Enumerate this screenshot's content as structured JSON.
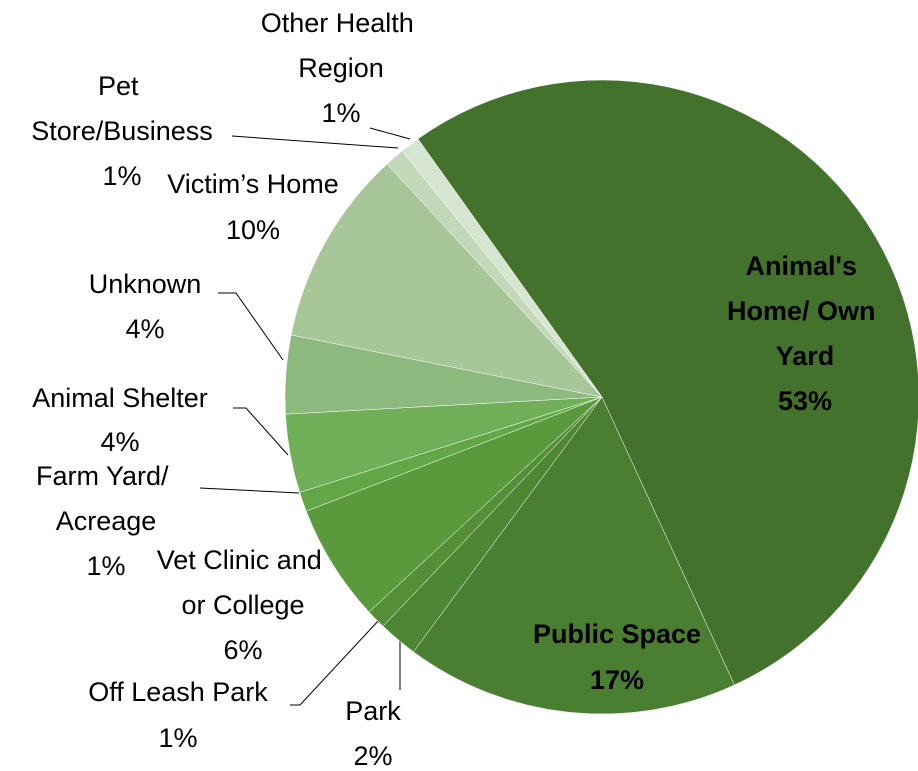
{
  "chart_data": {
    "type": "pie",
    "categories": [
      "Animal's Home/ Own Yard",
      "Public Space",
      "Park",
      "Off Leash Park",
      "Vet Clinic and or College",
      "Farm Yard/ Acreage",
      "Animal Shelter",
      "Unknown",
      "Victim’s Home",
      "Pet Store/Business",
      "Other Health Region"
    ],
    "values": [
      53,
      17,
      2,
      1,
      6,
      1,
      4,
      4,
      10,
      1,
      1
    ],
    "value_labels": [
      "53%",
      "17%",
      "2%",
      "1%",
      "6%",
      "1%",
      "4%",
      "4%",
      "10%",
      "1%",
      "1%"
    ],
    "colors": [
      "#43722d",
      "#4a7e31",
      "#4e8733",
      "#548f37",
      "#5a9a3c",
      "#62a746",
      "#71ae58",
      "#8cb97d",
      "#a7c698",
      "#c2d8b8",
      "#d6e5cf"
    ]
  }
}
